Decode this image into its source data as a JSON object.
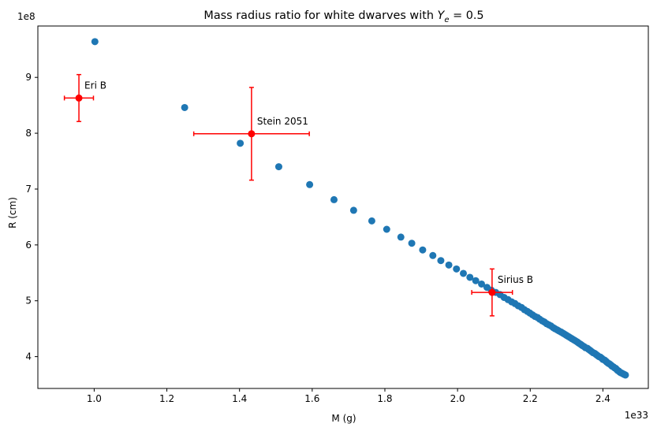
{
  "chart_data": {
    "type": "scatter",
    "title_main": "Mass radius ratio for white dwarves with ",
    "title_math_var": "Y",
    "title_math_sub": "e",
    "title_math_rest": " = 0.5",
    "xlabel": "M (g)",
    "ylabel": "R (cm)",
    "x_offset_text": "1e33",
    "y_offset_text": "1e8",
    "xlim": [
      0.845,
      2.525
    ],
    "ylim": [
      3.43,
      9.92
    ],
    "x_ticks": [
      1.0,
      1.2,
      1.4,
      1.6,
      1.8,
      2.0,
      2.2,
      2.4
    ],
    "x_tick_labels": [
      "1.0",
      "1.2",
      "1.4",
      "1.6",
      "1.8",
      "2.0",
      "2.2",
      "2.4"
    ],
    "y_ticks": [
      4,
      5,
      6,
      7,
      8,
      9
    ],
    "y_tick_labels": [
      "4",
      "5",
      "6",
      "7",
      "8",
      "9"
    ],
    "grid": false,
    "colors": {
      "series": "#1f77b4",
      "observed": "#ff0000"
    },
    "series": [
      {
        "x": [
          1.002,
          1.249,
          1.402,
          1.508,
          1.593,
          1.66,
          1.714,
          1.764,
          1.805,
          1.844,
          1.874,
          1.904,
          1.932,
          1.954,
          1.976,
          1.997,
          2.016,
          2.034,
          2.05,
          2.066,
          2.081,
          2.093,
          2.105,
          2.117,
          2.128,
          2.139,
          2.149,
          2.158,
          2.167,
          2.176,
          2.184,
          2.192,
          2.199,
          2.206,
          2.213,
          2.22,
          2.226,
          2.233,
          2.239,
          2.245,
          2.251,
          2.257,
          2.263,
          2.268,
          2.274,
          2.279,
          2.285,
          2.29,
          2.295,
          2.3,
          2.305,
          2.31,
          2.315,
          2.32,
          2.325,
          2.33,
          2.334,
          2.339,
          2.343,
          2.348,
          2.352,
          2.357,
          2.361,
          2.365,
          2.369,
          2.373,
          2.377,
          2.381,
          2.385,
          2.389,
          2.393,
          2.397,
          2.4,
          2.404,
          2.408,
          2.411,
          2.415,
          2.418,
          2.422,
          2.425,
          2.428,
          2.432,
          2.435,
          2.438,
          2.441,
          2.444,
          2.447,
          2.45,
          2.453,
          2.456,
          2.459,
          2.462
        ],
        "y": [
          9.64,
          8.46,
          7.82,
          7.4,
          7.08,
          6.81,
          6.62,
          6.43,
          6.28,
          6.14,
          6.03,
          5.91,
          5.81,
          5.72,
          5.64,
          5.57,
          5.49,
          5.42,
          5.36,
          5.3,
          5.24,
          5.19,
          5.15,
          5.11,
          5.06,
          5.02,
          4.98,
          4.95,
          4.91,
          4.88,
          4.84,
          4.81,
          4.78,
          4.75,
          4.72,
          4.7,
          4.67,
          4.64,
          4.62,
          4.59,
          4.57,
          4.55,
          4.52,
          4.5,
          4.48,
          4.46,
          4.44,
          4.42,
          4.4,
          4.38,
          4.36,
          4.34,
          4.32,
          4.3,
          4.28,
          4.26,
          4.24,
          4.22,
          4.2,
          4.18,
          4.16,
          4.15,
          4.13,
          4.11,
          4.09,
          4.07,
          4.06,
          4.04,
          4.02,
          4.0,
          3.99,
          3.97,
          3.95,
          3.94,
          3.92,
          3.9,
          3.88,
          3.87,
          3.85,
          3.83,
          3.82,
          3.8,
          3.79,
          3.77,
          3.75,
          3.74,
          3.72,
          3.71,
          3.7,
          3.69,
          3.68,
          3.67
        ]
      }
    ],
    "observations": [
      {
        "label": "Eri B",
        "x": 0.958,
        "y": 8.63,
        "xerr": 0.04,
        "yerr": 0.42
      },
      {
        "label": "Stein 2051",
        "x": 1.433,
        "y": 7.99,
        "xerr": 0.159,
        "yerr": 0.83
      },
      {
        "label": "Sirius B",
        "x": 2.095,
        "y": 5.15,
        "xerr": 0.056,
        "yerr": 0.42
      }
    ]
  }
}
